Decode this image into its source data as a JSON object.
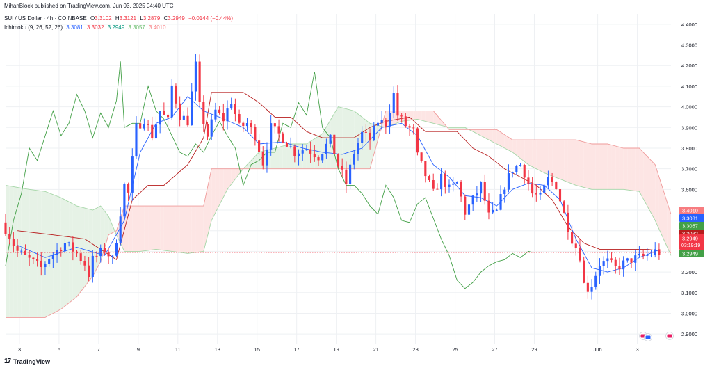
{
  "header": {
    "publisher": "MihanBlock published on TradingView.com, Jun 03, 2025 04:40 UTC",
    "symbol": "SUI / US Dollar · 4h · COINBASE",
    "open_label": "O",
    "open": "3.3102",
    "high_label": "H",
    "high": "3.3121",
    "low_label": "L",
    "low": "3.2879",
    "close_label": "C",
    "close": "3.2949",
    "change": "−0.0144 (−0.44%)",
    "indicator": "Ichimoku (9, 26, 52, 26)",
    "ind_values": [
      "3.3081",
      "3.3032",
      "3.2949",
      "3.3057",
      "3.4010"
    ]
  },
  "footer": {
    "brand": "TradingView",
    "brand_mark": "17"
  },
  "colors": {
    "up": "#2962ff",
    "down": "#f23645",
    "tenkan": "#2962ff",
    "kijun": "#b71c1c",
    "chikou": "#43a047",
    "span_a": "#a5d6a7",
    "span_b": "#ef9a9a",
    "cloud_bull": "#e6f2e6",
    "cloud_bear": "#fde5e4",
    "grid": "#eef0f3",
    "axis_text": "#131722"
  },
  "chart_data": {
    "type": "candlestick",
    "symbol": "SUI/USD",
    "timeframe": "4h",
    "ylim": [
      2.85,
      4.45
    ],
    "y_ticks": [
      2.9,
      3.0,
      3.1,
      3.2,
      3.3,
      3.4,
      3.5,
      3.6,
      3.7,
      3.8,
      3.9,
      4.0,
      4.1,
      4.2,
      4.3,
      4.4
    ],
    "y_tick_labels": [
      "2.9000",
      "3.0000",
      "3.1000",
      "3.2000",
      "3.3000",
      "3.4000",
      "3.5000",
      "3.6000",
      "3.7000",
      "3.8000",
      "3.9000",
      "4.0000",
      "4.1000",
      "4.2000",
      "4.3000",
      "4.4000"
    ],
    "x_range": [
      0,
      168
    ],
    "x_ticks": [
      {
        "x": 3.5,
        "label": "3"
      },
      {
        "x": 13.5,
        "label": "5"
      },
      {
        "x": 23.5,
        "label": "7"
      },
      {
        "x": 33.5,
        "label": "9"
      },
      {
        "x": 43.5,
        "label": "11"
      },
      {
        "x": 53.5,
        "label": "13"
      },
      {
        "x": 63.5,
        "label": "15"
      },
      {
        "x": 73.5,
        "label": "17"
      },
      {
        "x": 83.5,
        "label": "19"
      },
      {
        "x": 93.5,
        "label": "21"
      },
      {
        "x": 103.5,
        "label": "23"
      },
      {
        "x": 113.5,
        "label": "25"
      },
      {
        "x": 123.5,
        "label": "27"
      },
      {
        "x": 133.5,
        "label": "29"
      },
      {
        "x": 149.5,
        "label": "Jun"
      },
      {
        "x": 159.5,
        "label": "3"
      }
    ],
    "current_price": 3.2949,
    "countdown": "03:19:19",
    "price_labels": [
      {
        "value": 3.401,
        "text": "3.4010",
        "color": "#f77c80"
      },
      {
        "value": 3.3081,
        "text": "3.3081",
        "color": "#2962ff"
      },
      {
        "value": 3.3057,
        "text": "3.3057",
        "color": "#43a047"
      },
      {
        "value": 3.3032,
        "text": "3.3032",
        "color": "#b71c1c"
      },
      {
        "value": 3.2949,
        "text": "3.2949",
        "color": "#f23645"
      },
      {
        "value": 3.2949,
        "text": "3.2949",
        "color": "#43a047"
      }
    ],
    "close_anchors": [
      [
        0,
        3.41
      ],
      [
        3,
        3.3
      ],
      [
        6,
        3.26
      ],
      [
        9,
        3.22
      ],
      [
        11,
        3.27
      ],
      [
        15,
        3.34
      ],
      [
        18,
        3.29
      ],
      [
        20,
        3.24
      ],
      [
        21,
        3.19
      ],
      [
        22,
        3.26
      ],
      [
        25,
        3.31
      ],
      [
        27,
        3.26
      ],
      [
        28,
        3.36
      ],
      [
        30,
        3.62
      ],
      [
        31,
        3.58
      ],
      [
        33,
        3.9
      ],
      [
        35,
        3.94
      ],
      [
        37,
        3.86
      ],
      [
        39,
        3.98
      ],
      [
        41,
        3.93
      ],
      [
        42,
        4.1
      ],
      [
        44,
        3.96
      ],
      [
        46,
        3.93
      ],
      [
        48,
        4.2
      ],
      [
        49,
        4.0
      ],
      [
        51,
        3.86
      ],
      [
        53,
        3.98
      ],
      [
        55,
        3.94
      ],
      [
        57,
        4.03
      ],
      [
        59,
        3.9
      ],
      [
        61,
        3.92
      ],
      [
        63,
        3.86
      ],
      [
        65,
        3.73
      ],
      [
        67,
        3.9
      ],
      [
        70,
        3.85
      ],
      [
        73,
        3.78
      ],
      [
        76,
        3.8
      ],
      [
        79,
        3.76
      ],
      [
        82,
        3.84
      ],
      [
        84,
        3.72
      ],
      [
        86,
        3.63
      ],
      [
        88,
        3.78
      ],
      [
        90,
        3.87
      ],
      [
        92,
        3.84
      ],
      [
        94,
        3.93
      ],
      [
        96,
        3.92
      ],
      [
        98,
        4.06
      ],
      [
        99,
        3.96
      ],
      [
        101,
        3.91
      ],
      [
        103,
        3.88
      ],
      [
        104,
        3.76
      ],
      [
        106,
        3.67
      ],
      [
        108,
        3.58
      ],
      [
        110,
        3.66
      ],
      [
        112,
        3.6
      ],
      [
        114,
        3.63
      ],
      [
        116,
        3.49
      ],
      [
        118,
        3.55
      ],
      [
        120,
        3.62
      ],
      [
        122,
        3.47
      ],
      [
        124,
        3.49
      ],
      [
        126,
        3.62
      ],
      [
        128,
        3.7
      ],
      [
        130,
        3.72
      ],
      [
        131,
        3.68
      ],
      [
        133,
        3.58
      ],
      [
        135,
        3.56
      ],
      [
        137,
        3.65
      ],
      [
        139,
        3.62
      ],
      [
        141,
        3.48
      ],
      [
        143,
        3.36
      ],
      [
        145,
        3.28
      ],
      [
        146,
        3.14
      ],
      [
        147,
        3.12
      ],
      [
        148,
        3.14
      ],
      [
        150,
        3.24
      ],
      [
        152,
        3.25
      ],
      [
        154,
        3.22
      ],
      [
        156,
        3.24
      ],
      [
        158,
        3.26
      ],
      [
        160,
        3.27
      ],
      [
        162,
        3.28
      ],
      [
        164,
        3.3
      ],
      [
        165,
        3.2949
      ]
    ],
    "tenkan_anchors": [
      [
        3,
        3.33
      ],
      [
        10,
        3.27
      ],
      [
        18,
        3.32
      ],
      [
        25,
        3.28
      ],
      [
        30,
        3.45
      ],
      [
        34,
        3.78
      ],
      [
        38,
        3.92
      ],
      [
        42,
        3.95
      ],
      [
        46,
        4.05
      ],
      [
        50,
        3.98
      ],
      [
        54,
        3.95
      ],
      [
        60,
        3.9
      ],
      [
        64,
        3.82
      ],
      [
        70,
        3.83
      ],
      [
        75,
        3.8
      ],
      [
        80,
        3.78
      ],
      [
        85,
        3.77
      ],
      [
        90,
        3.8
      ],
      [
        95,
        3.9
      ],
      [
        100,
        3.92
      ],
      [
        104,
        3.86
      ],
      [
        108,
        3.72
      ],
      [
        112,
        3.66
      ],
      [
        116,
        3.57
      ],
      [
        120,
        3.56
      ],
      [
        124,
        3.52
      ],
      [
        128,
        3.6
      ],
      [
        132,
        3.63
      ],
      [
        136,
        3.62
      ],
      [
        140,
        3.55
      ],
      [
        144,
        3.36
      ],
      [
        148,
        3.22
      ],
      [
        152,
        3.2
      ],
      [
        156,
        3.22
      ],
      [
        160,
        3.27
      ],
      [
        164,
        3.3
      ],
      [
        165,
        3.3081
      ]
    ],
    "kijun_anchors": [
      [
        3,
        3.4
      ],
      [
        12,
        3.38
      ],
      [
        20,
        3.36
      ],
      [
        28,
        3.26
      ],
      [
        32,
        3.55
      ],
      [
        36,
        3.62
      ],
      [
        40,
        3.62
      ],
      [
        46,
        3.72
      ],
      [
        50,
        3.85
      ],
      [
        52,
        4.07
      ],
      [
        60,
        4.07
      ],
      [
        64,
        4.02
      ],
      [
        68,
        3.95
      ],
      [
        72,
        3.95
      ],
      [
        76,
        3.88
      ],
      [
        80,
        3.85
      ],
      [
        84,
        3.85
      ],
      [
        88,
        3.85
      ],
      [
        92,
        3.9
      ],
      [
        96,
        3.93
      ],
      [
        102,
        3.95
      ],
      [
        106,
        3.88
      ],
      [
        110,
        3.88
      ],
      [
        114,
        3.88
      ],
      [
        118,
        3.8
      ],
      [
        122,
        3.76
      ],
      [
        126,
        3.7
      ],
      [
        130,
        3.66
      ],
      [
        134,
        3.62
      ],
      [
        138,
        3.55
      ],
      [
        142,
        3.42
      ],
      [
        146,
        3.34
      ],
      [
        150,
        3.31
      ],
      [
        154,
        3.31
      ],
      [
        158,
        3.31
      ],
      [
        162,
        3.31
      ],
      [
        165,
        3.3032
      ]
    ],
    "chikou_anchors": [
      [
        0,
        3.23
      ],
      [
        2,
        3.45
      ],
      [
        4,
        3.58
      ],
      [
        6,
        3.8
      ],
      [
        8,
        3.74
      ],
      [
        10,
        3.86
      ],
      [
        12,
        3.98
      ],
      [
        14,
        3.86
      ],
      [
        16,
        3.92
      ],
      [
        18,
        4.06
      ],
      [
        20,
        3.98
      ],
      [
        22,
        3.85
      ],
      [
        24,
        3.97
      ],
      [
        26,
        3.9
      ],
      [
        28,
        4.03
      ],
      [
        29,
        4.22
      ],
      [
        30,
        3.9
      ],
      [
        32,
        3.92
      ],
      [
        34,
        3.92
      ],
      [
        36,
        4.1
      ],
      [
        38,
        3.98
      ],
      [
        40,
        3.94
      ],
      [
        42,
        3.86
      ],
      [
        44,
        3.78
      ],
      [
        46,
        3.76
      ],
      [
        48,
        3.82
      ],
      [
        50,
        3.78
      ],
      [
        52,
        3.86
      ],
      [
        54,
        3.93
      ],
      [
        56,
        3.86
      ],
      [
        58,
        3.8
      ],
      [
        60,
        3.62
      ],
      [
        62,
        3.72
      ],
      [
        64,
        3.74
      ],
      [
        66,
        3.78
      ],
      [
        68,
        3.78
      ],
      [
        70,
        3.92
      ],
      [
        72,
        3.9
      ],
      [
        74,
        4.02
      ],
      [
        76,
        3.96
      ],
      [
        78,
        4.17
      ],
      [
        80,
        3.9
      ],
      [
        82,
        3.85
      ],
      [
        84,
        3.7
      ],
      [
        86,
        3.62
      ],
      [
        88,
        3.62
      ],
      [
        90,
        3.58
      ],
      [
        92,
        3.52
      ],
      [
        94,
        3.48
      ],
      [
        96,
        3.62
      ],
      [
        98,
        3.56
      ],
      [
        100,
        3.45
      ],
      [
        102,
        3.44
      ],
      [
        104,
        3.53
      ],
      [
        106,
        3.56
      ],
      [
        108,
        3.46
      ],
      [
        110,
        3.36
      ],
      [
        112,
        3.28
      ],
      [
        114,
        3.16
      ],
      [
        116,
        3.12
      ],
      [
        118,
        3.15
      ],
      [
        120,
        3.2
      ],
      [
        122,
        3.23
      ],
      [
        124,
        3.25
      ],
      [
        126,
        3.26
      ],
      [
        128,
        3.29
      ],
      [
        130,
        3.27
      ],
      [
        132,
        3.3
      ],
      [
        133,
        3.2949
      ]
    ],
    "span_a_anchors": [
      [
        0,
        3.62
      ],
      [
        6,
        3.6
      ],
      [
        10,
        3.59
      ],
      [
        14,
        3.56
      ],
      [
        18,
        3.52
      ],
      [
        22,
        3.5
      ],
      [
        24,
        3.52
      ],
      [
        26,
        3.47
      ],
      [
        28,
        3.38
      ],
      [
        30,
        3.3
      ],
      [
        34,
        3.3
      ],
      [
        38,
        3.31
      ],
      [
        42,
        3.3
      ],
      [
        46,
        3.29
      ],
      [
        50,
        3.3
      ],
      [
        52,
        3.45
      ],
      [
        56,
        3.6
      ],
      [
        60,
        3.7
      ],
      [
        64,
        3.78
      ],
      [
        68,
        3.8
      ],
      [
        72,
        3.82
      ],
      [
        76,
        3.82
      ],
      [
        80,
        3.87
      ],
      [
        84,
        4.0
      ],
      [
        88,
        3.98
      ],
      [
        92,
        3.92
      ],
      [
        96,
        3.9
      ],
      [
        100,
        3.93
      ],
      [
        104,
        3.94
      ],
      [
        108,
        3.92
      ],
      [
        112,
        3.9
      ],
      [
        116,
        3.9
      ],
      [
        120,
        3.86
      ],
      [
        124,
        3.82
      ],
      [
        128,
        3.78
      ],
      [
        132,
        3.72
      ],
      [
        136,
        3.68
      ],
      [
        140,
        3.65
      ],
      [
        144,
        3.62
      ],
      [
        148,
        3.6
      ],
      [
        152,
        3.6
      ],
      [
        156,
        3.6
      ],
      [
        160,
        3.59
      ],
      [
        164,
        3.45
      ],
      [
        168,
        3.28
      ]
    ],
    "span_b_anchors": [
      [
        0,
        2.98
      ],
      [
        6,
        2.98
      ],
      [
        10,
        2.98
      ],
      [
        14,
        3.02
      ],
      [
        18,
        3.08
      ],
      [
        22,
        3.18
      ],
      [
        24,
        3.25
      ],
      [
        26,
        3.38
      ],
      [
        28,
        3.4
      ],
      [
        30,
        3.52
      ],
      [
        34,
        3.52
      ],
      [
        38,
        3.52
      ],
      [
        42,
        3.52
      ],
      [
        46,
        3.52
      ],
      [
        50,
        3.52
      ],
      [
        52,
        3.7
      ],
      [
        56,
        3.7
      ],
      [
        60,
        3.7
      ],
      [
        64,
        3.7
      ],
      [
        68,
        3.7
      ],
      [
        72,
        3.7
      ],
      [
        76,
        3.7
      ],
      [
        80,
        3.7
      ],
      [
        84,
        3.7
      ],
      [
        88,
        3.7
      ],
      [
        92,
        3.7
      ],
      [
        96,
        3.98
      ],
      [
        100,
        3.98
      ],
      [
        104,
        3.98
      ],
      [
        108,
        3.98
      ],
      [
        112,
        3.89
      ],
      [
        116,
        3.89
      ],
      [
        120,
        3.89
      ],
      [
        124,
        3.89
      ],
      [
        128,
        3.84
      ],
      [
        132,
        3.84
      ],
      [
        136,
        3.84
      ],
      [
        140,
        3.84
      ],
      [
        144,
        3.84
      ],
      [
        148,
        3.82
      ],
      [
        152,
        3.82
      ],
      [
        156,
        3.8
      ],
      [
        160,
        3.8
      ],
      [
        164,
        3.72
      ],
      [
        168,
        3.48
      ]
    ]
  }
}
